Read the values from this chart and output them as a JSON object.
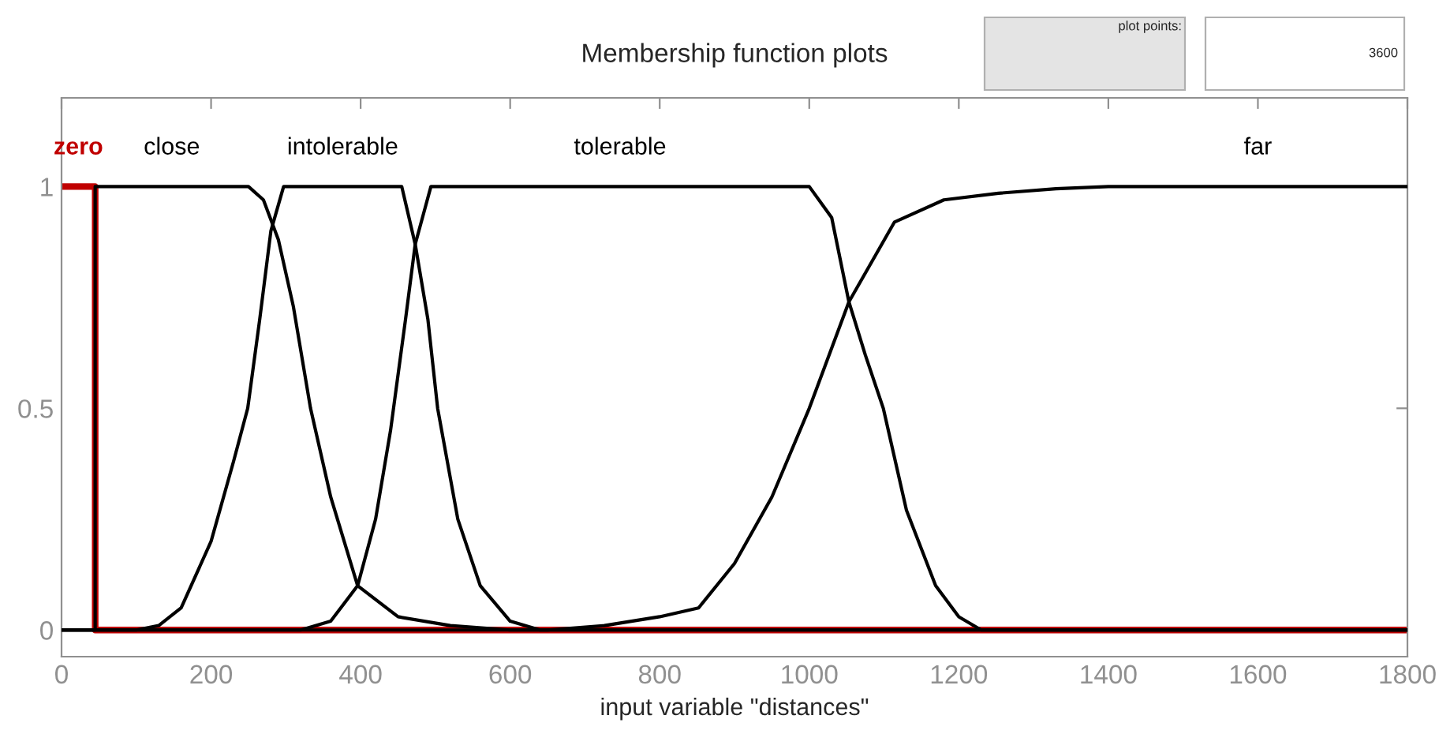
{
  "chart_data": {
    "type": "line",
    "title": "Membership function plots",
    "xlabel": "input variable \"distances\"",
    "xlim": [
      0,
      1800
    ],
    "xticks": [
      0,
      200,
      400,
      600,
      800,
      1000,
      1200,
      1400,
      1600,
      1800
    ],
    "ylim": [
      -0.06,
      1.2
    ],
    "yticks": [
      0,
      0.5,
      1
    ],
    "grid": false,
    "legend": false,
    "marker": "none",
    "line_style": "solid",
    "annotations": [
      "plot points:",
      "3600"
    ],
    "series": [
      {
        "name": "zero",
        "color": "#c00000",
        "x": [
          0,
          45,
          45,
          1800
        ],
        "values": [
          1,
          1,
          0,
          0
        ]
      },
      {
        "name": "close",
        "color": "#000000",
        "x": [
          0,
          45,
          45,
          250,
          270,
          290,
          310,
          333,
          360,
          396,
          450,
          520,
          600,
          1800
        ],
        "values": [
          0,
          0,
          1,
          1,
          0.97,
          0.88,
          0.73,
          0.5,
          0.3,
          0.1,
          0.03,
          0.01,
          0,
          0
        ]
      },
      {
        "name": "intolerable",
        "color": "#000000",
        "x": [
          0,
          100,
          130,
          160,
          200,
          230,
          249,
          265,
          280,
          297,
          455,
          473,
          490,
          503,
          530,
          560,
          600,
          640,
          1800
        ],
        "values": [
          0,
          0,
          0.01,
          0.05,
          0.2,
          0.38,
          0.5,
          0.7,
          0.9,
          1,
          1,
          0.87,
          0.7,
          0.5,
          0.25,
          0.1,
          0.02,
          0,
          0
        ]
      },
      {
        "name": "tolerable",
        "color": "#000000",
        "x": [
          0,
          320,
          360,
          396,
          420,
          440,
          460,
          473,
          494,
          1000,
          1030,
          1053,
          1075,
          1099,
          1130,
          1169,
          1200,
          1230,
          1800
        ],
        "values": [
          0,
          0,
          0.02,
          0.1,
          0.25,
          0.45,
          0.7,
          0.87,
          1,
          1,
          0.93,
          0.74,
          0.62,
          0.5,
          0.27,
          0.1,
          0.03,
          0,
          0
        ]
      },
      {
        "name": "far",
        "color": "#000000",
        "x": [
          0,
          650,
          726,
          800,
          852,
          900,
          950,
          1000,
          1053,
          1114,
          1180,
          1253,
          1330,
          1400,
          1800
        ],
        "values": [
          0,
          0,
          0.01,
          0.03,
          0.05,
          0.15,
          0.3,
          0.5,
          0.74,
          0.92,
          0.97,
          0.985,
          0.995,
          1,
          1
        ]
      }
    ]
  }
}
